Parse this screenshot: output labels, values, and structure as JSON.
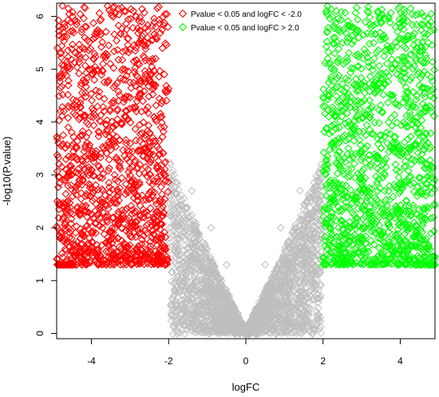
{
  "chart_data": {
    "type": "scatter",
    "title": "",
    "xlabel": "logFC",
    "ylabel": "-log10(P.value)",
    "xlim": [
      -4.9,
      4.9
    ],
    "ylim": [
      -0.1,
      6.25
    ],
    "x_ticks": [
      -4,
      -2,
      0,
      2,
      4
    ],
    "y_ticks": [
      0,
      1,
      2,
      3,
      4,
      5,
      6
    ],
    "grid": false,
    "marker": "diamond-open",
    "legend": {
      "position": "top-center",
      "entries": [
        {
          "label": "Pvalue < 0.05 and logFC < -2.0",
          "color": "#ff0000"
        },
        {
          "label": "Pvalue < 0.05 and logFC > 2.0",
          "color": "#00ff00"
        }
      ]
    },
    "series": [
      {
        "color": "#bebebe",
        "description_values": {
          "shape": "V",
          "vertex": [
            0,
            0
          ],
          "pvalue_cutoff": 1.3
        },
        "points": [
          [
            -1.95,
            3.2
          ],
          [
            -1.4,
            2.7
          ],
          [
            -0.9,
            2.0
          ],
          [
            -0.5,
            1.3
          ],
          [
            0,
            0
          ],
          [
            0.5,
            1.3
          ],
          [
            0.9,
            2.0
          ],
          [
            1.4,
            2.7
          ],
          [
            1.95,
            3.2
          ],
          [
            -1.2,
            0.45
          ],
          [
            -1.6,
            0.5
          ],
          [
            -1.5,
            0.4
          ]
        ]
      },
      {
        "color": "#ff0000",
        "condition": "logFC < -2.0 and P < 0.05",
        "points": [
          [
            -4.75,
            6.2
          ],
          [
            -4.6,
            6.15
          ],
          [
            -3.15,
            6.1
          ],
          [
            -2.85,
            6.0
          ],
          [
            -2.7,
            5.9
          ],
          [
            -4.1,
            5.55
          ],
          [
            -3.9,
            5.6
          ],
          [
            -3.55,
            5.45
          ],
          [
            -2.55,
            5.6
          ],
          [
            -4.3,
            5.2
          ],
          [
            -3.7,
            5.1
          ],
          [
            -2.5,
            5.15
          ],
          [
            -4.8,
            4.9
          ],
          [
            -4.2,
            4.8
          ],
          [
            -3.0,
            4.75
          ],
          [
            -2.4,
            4.7
          ],
          [
            -4.5,
            4.3
          ],
          [
            -3.3,
            4.4
          ],
          [
            -2.7,
            4.2
          ],
          [
            -4.6,
            3.9
          ],
          [
            -3.8,
            3.8
          ],
          [
            -2.2,
            3.9
          ],
          [
            -4.4,
            3.5
          ],
          [
            -3.1,
            3.6
          ],
          [
            -2.5,
            3.4
          ],
          [
            -4.0,
            3.1
          ],
          [
            -3.4,
            3.0
          ],
          [
            -2.2,
            3.1
          ],
          [
            -3.7,
            2.7
          ],
          [
            -2.8,
            2.6
          ],
          [
            -3.3,
            2.3
          ],
          [
            -2.4,
            2.2
          ],
          [
            -2.9,
            1.9
          ],
          [
            -2.2,
            1.8
          ],
          [
            -2.6,
            1.5
          ],
          [
            -2.1,
            1.3
          ]
        ]
      },
      {
        "color": "#00ff00",
        "condition": "logFC > 2.0 and P < 0.05",
        "points": [
          [
            3.95,
            6.15
          ],
          [
            4.8,
            6.05
          ],
          [
            4.55,
            5.85
          ],
          [
            2.75,
            5.8
          ],
          [
            3.05,
            5.65
          ],
          [
            4.15,
            5.55
          ],
          [
            2.5,
            5.5
          ],
          [
            3.6,
            5.35
          ],
          [
            2.3,
            5.3
          ],
          [
            4.4,
            5.2
          ],
          [
            2.9,
            5.05
          ],
          [
            4.7,
            4.9
          ],
          [
            2.2,
            4.8
          ],
          [
            3.3,
            4.7
          ],
          [
            4.2,
            4.55
          ],
          [
            2.6,
            4.4
          ],
          [
            4.8,
            4.2
          ],
          [
            2.15,
            4.1
          ],
          [
            3.7,
            4.0
          ],
          [
            4.5,
            3.8
          ],
          [
            2.4,
            3.6
          ],
          [
            3.1,
            3.5
          ],
          [
            4.3,
            3.3
          ],
          [
            2.1,
            3.2
          ],
          [
            3.6,
            3.0
          ],
          [
            2.6,
            2.8
          ],
          [
            4.0,
            2.7
          ],
          [
            2.2,
            2.5
          ],
          [
            3.2,
            2.3
          ],
          [
            2.8,
            2.25
          ],
          [
            2.4,
            2.0
          ],
          [
            3.0,
            1.8
          ],
          [
            2.1,
            1.6
          ],
          [
            2.6,
            1.4
          ],
          [
            2.0,
            1.3
          ]
        ]
      }
    ]
  }
}
